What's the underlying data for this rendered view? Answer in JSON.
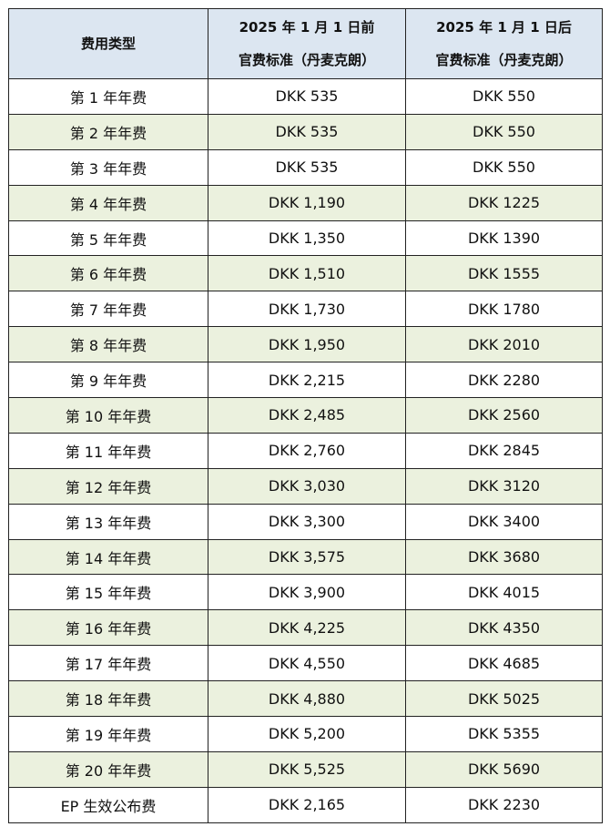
{
  "header": {
    "col1": "费用类型",
    "col2_line1": "2025 年 1 月 1 日前",
    "col2_line2": "官费标准（丹麦克朗）",
    "col3_line1": "2025 年 1 月 1 日后",
    "col3_line2": "官费标准（丹麦克朗）"
  },
  "colors": {
    "header_bg": "#dce6f1",
    "alt_row_bg": "#ebf1de"
  },
  "rows": [
    [
      "第 1 年年费",
      "DKK 535",
      "DKK 550"
    ],
    [
      "第 2 年年费",
      "DKK 535",
      "DKK 550"
    ],
    [
      "第 3 年年费",
      "DKK 535",
      "DKK 550"
    ],
    [
      "第 4 年年费",
      "DKK 1,190",
      "DKK 1225"
    ],
    [
      "第 5 年年费",
      "DKK 1,350",
      "DKK 1390"
    ],
    [
      "第 6 年年费",
      "DKK 1,510",
      "DKK 1555"
    ],
    [
      "第 7 年年费",
      "DKK 1,730",
      "DKK 1780"
    ],
    [
      "第 8 年年费",
      "DKK 1,950",
      "DKK 2010"
    ],
    [
      "第 9 年年费",
      "DKK 2,215",
      "DKK 2280"
    ],
    [
      "第 10 年年费",
      "DKK 2,485",
      "DKK 2560"
    ],
    [
      "第 11 年年费",
      "DKK 2,760",
      "DKK 2845"
    ],
    [
      "第 12 年年费",
      "DKK 3,030",
      "DKK 3120"
    ],
    [
      "第 13 年年费",
      "DKK 3,300",
      "DKK 3400"
    ],
    [
      "第 14 年年费",
      "DKK 3,575",
      "DKK 3680"
    ],
    [
      "第 15 年年费",
      "DKK 3,900",
      "DKK 4015"
    ],
    [
      "第 16 年年费",
      "DKK 4,225",
      "DKK 4350"
    ],
    [
      "第 17 年年费",
      "DKK 4,550",
      "DKK 4685"
    ],
    [
      "第 18 年年费",
      "DKK 4,880",
      "DKK 5025"
    ],
    [
      "第 19 年年费",
      "DKK 5,200",
      "DKK 5355"
    ],
    [
      "第 20 年年费",
      "DKK 5,525",
      "DKK 5690"
    ],
    [
      "EP 生效公布费",
      "DKK 2,165",
      "DKK 2230"
    ]
  ]
}
